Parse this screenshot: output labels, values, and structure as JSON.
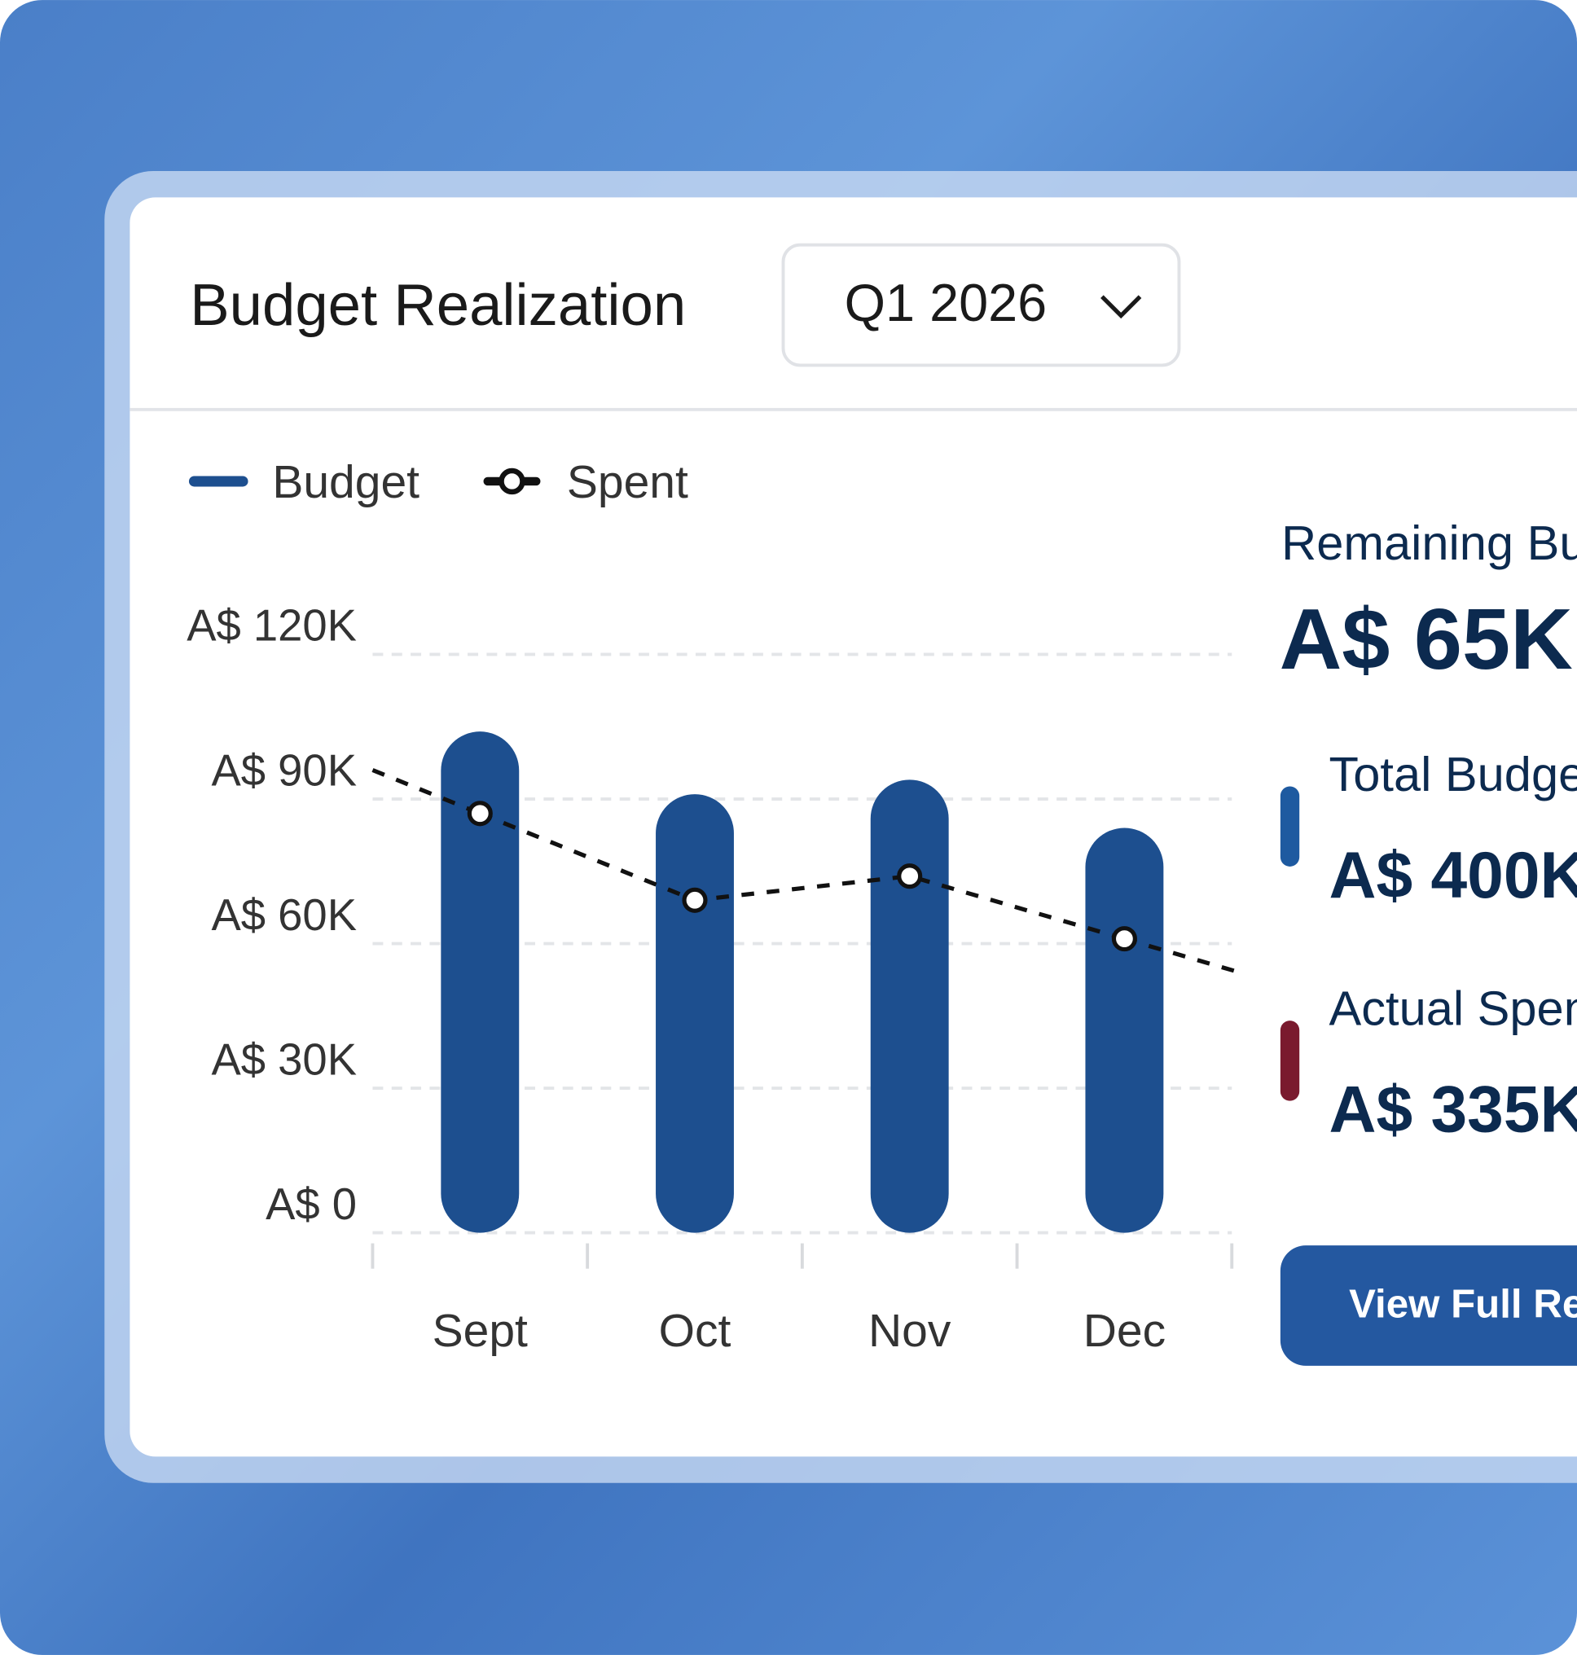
{
  "header": {
    "title": "Budget Realization",
    "period": "Q1 2026"
  },
  "chart_data": {
    "type": "bar-line",
    "categories": [
      "Sept",
      "Oct",
      "Nov",
      "Dec"
    ],
    "series": [
      {
        "name": "Budget",
        "color": "#1d4f8f",
        "values": [
          104000,
          91000,
          94000,
          84000
        ]
      },
      {
        "name": "Spent",
        "color": "#111111",
        "values": [
          87000,
          69000,
          74000,
          61000
        ]
      }
    ],
    "ylim": [
      0,
      120000
    ],
    "yticks": [
      {
        "value": 0,
        "label": "A$ 0"
      },
      {
        "value": 30000,
        "label": "A$ 30K"
      },
      {
        "value": 60000,
        "label": "A$ 60K"
      },
      {
        "value": 90000,
        "label": "A$ 90K"
      },
      {
        "value": 120000,
        "label": "A$ 120K"
      }
    ],
    "grid": true
  },
  "summary": {
    "remaining_label": "Remaining Budget",
    "remaining_value": "A$ 65K",
    "items": [
      {
        "label": "Total Budget",
        "value": "A$ 400K",
        "color": "#1e5aa0"
      },
      {
        "label": "Actual Spent",
        "value": "A$ 335K",
        "color": "#7a1a2e"
      }
    ]
  },
  "button": "View Full Report"
}
